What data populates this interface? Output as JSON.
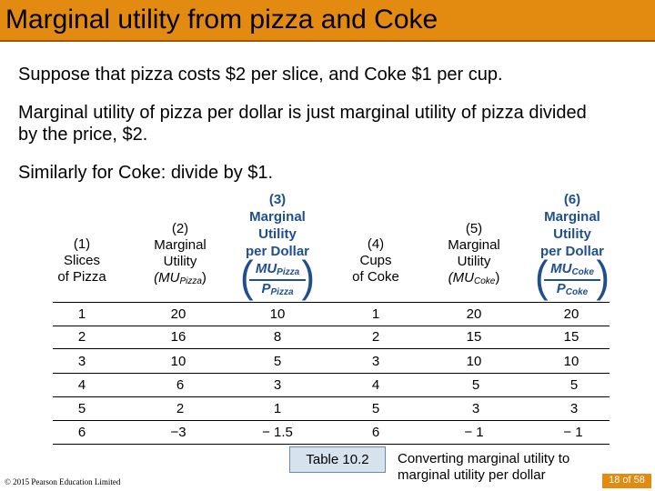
{
  "slide": {
    "title": "Marginal utility from pizza and Coke",
    "paragraphs": [
      "Suppose that pizza costs $2 per slice, and Coke $1 per cup.",
      "Marginal utility of pizza per dollar is just marginal utility of pizza divided by the price, $2.",
      "Similarly for Coke: divide by $1."
    ]
  },
  "table": {
    "headers": {
      "c1": [
        "(1)",
        "Slices",
        "of Pizza"
      ],
      "c2": [
        "(2)",
        "Marginal",
        "Utility"
      ],
      "c2_mu_base": "(MU",
      "c2_mu_sub": "Pizza",
      "c2_mu_end": ")",
      "c3": [
        "(3)",
        "Marginal",
        "Utility",
        "per Dollar"
      ],
      "c3_num": "MU",
      "c3_num_sub": "Pizza",
      "c3_den": "P",
      "c3_den_sub": "Pizza",
      "c4": [
        "(4)",
        "Cups",
        "of Coke"
      ],
      "c5": [
        "(5)",
        "Marginal",
        "Utility"
      ],
      "c5_mu_base": "(MU",
      "c5_mu_sub": "Coke",
      "c5_mu_end": ")",
      "c6": [
        "(6)",
        "Marginal",
        "Utility",
        "per Dollar"
      ],
      "c6_num": "MU",
      "c6_num_sub": "Coke",
      "c6_den": "P",
      "c6_den_sub": "Coke"
    },
    "rows": [
      [
        "1",
        "20",
        "10",
        "1",
        "20",
        "20"
      ],
      [
        "2",
        "16",
        "8",
        "2",
        "15",
        "15"
      ],
      [
        "3",
        "10",
        "5",
        "3",
        "10",
        "10"
      ],
      [
        "4",
        "6",
        "3",
        "4",
        "5",
        "5"
      ],
      [
        "5",
        "2",
        "1",
        "5",
        "3",
        "3"
      ],
      [
        "6",
        "−3",
        "− 1.5",
        "6",
        "− 1",
        "− 1"
      ]
    ]
  },
  "caption": {
    "table_number": "Table 10.2",
    "text": "Converting marginal utility to marginal utility per dollar"
  },
  "footer": {
    "copyright": "© 2015 Pearson Education Limited",
    "page": "18 of 58"
  },
  "colors": {
    "title_bar": "#e38a11",
    "header_blue": "#1f4e91",
    "caption_box": "#d6e3ef"
  }
}
